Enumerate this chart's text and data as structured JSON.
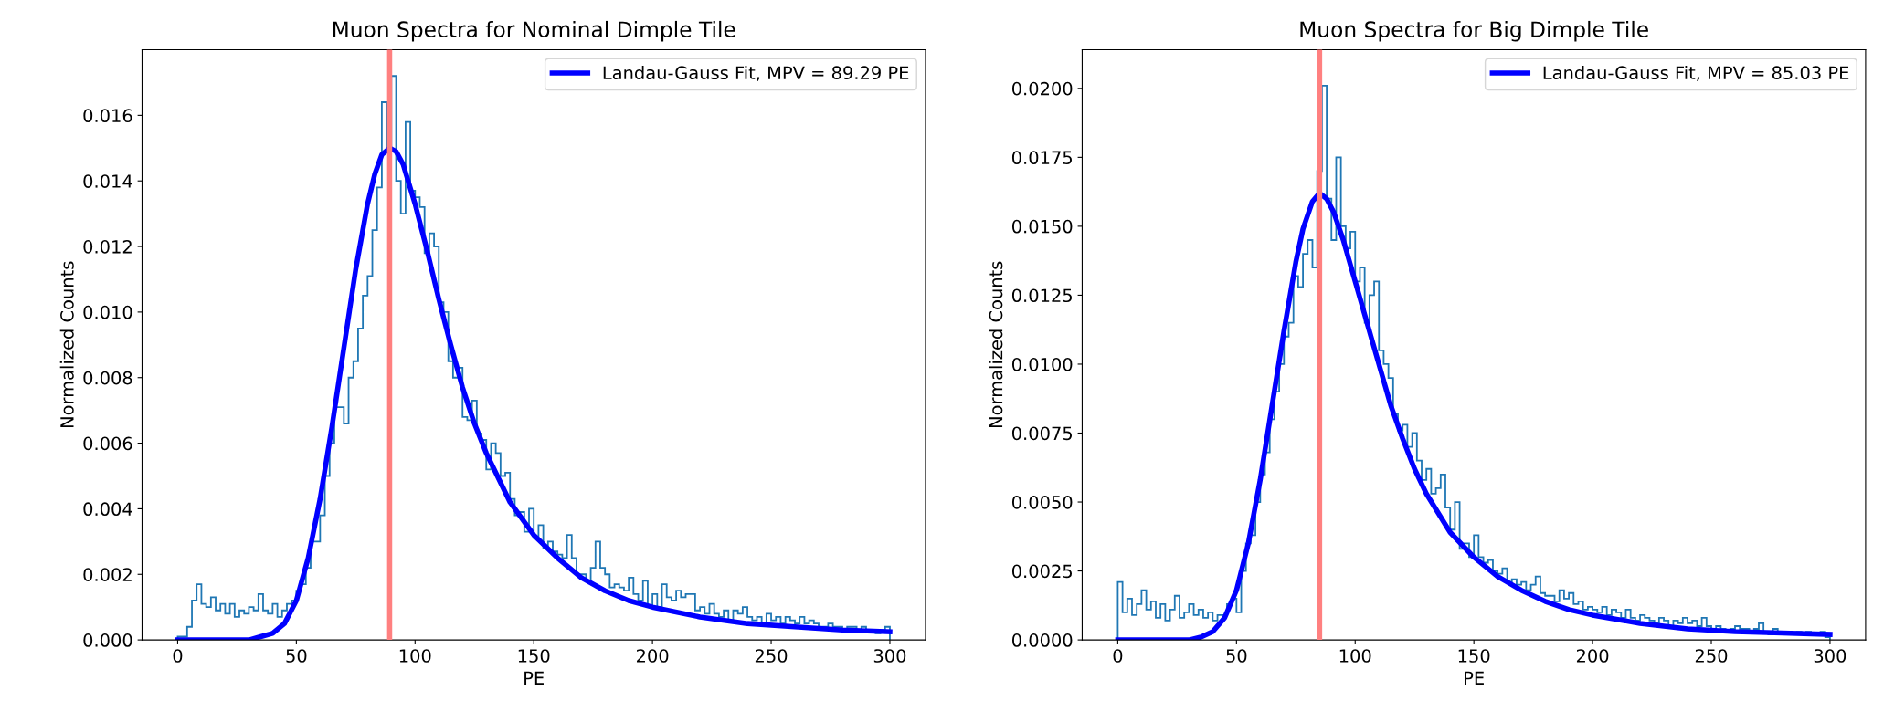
{
  "chart_data": [
    {
      "type": "histogram",
      "title": "Muon Spectra for Nominal Dimple Tile",
      "xlabel": "PE",
      "ylabel": "Normalized Counts",
      "xlim": [
        -15,
        315
      ],
      "xticks": [
        0,
        50,
        100,
        150,
        200,
        250,
        300
      ],
      "ylim": [
        0,
        0.018
      ],
      "yticks": [
        {
          "value": 0,
          "label": "0.000"
        },
        {
          "value": 0.002,
          "label": "0.002"
        },
        {
          "value": 0.004,
          "label": "0.004"
        },
        {
          "value": 0.006,
          "label": "0.006"
        },
        {
          "value": 0.008,
          "label": "0.008"
        },
        {
          "value": 0.01,
          "label": "0.010"
        },
        {
          "value": 0.012,
          "label": "0.012"
        },
        {
          "value": 0.014,
          "label": "0.014"
        },
        {
          "value": 0.016,
          "label": "0.016"
        }
      ],
      "grid": false,
      "legend": "top right",
      "ref_lines": [
        {
          "axis": "x",
          "value": 89.29,
          "color": "#ff8080"
        }
      ],
      "series": [
        {
          "color": "#1f77b4",
          "bins": [
            0,
            2,
            4,
            6,
            8,
            10,
            12,
            14,
            16,
            18,
            20,
            22,
            24,
            26,
            28,
            30,
            32,
            34,
            36,
            38,
            40,
            42,
            44,
            46,
            48,
            50,
            52,
            54,
            56,
            58,
            60,
            62,
            64,
            66,
            68,
            70,
            72,
            74,
            76,
            78,
            80,
            82,
            84,
            86,
            88,
            90,
            92,
            94,
            96,
            98,
            100,
            102,
            104,
            106,
            108,
            110,
            112,
            114,
            116,
            118,
            120,
            122,
            124,
            126,
            128,
            130,
            132,
            134,
            136,
            138,
            140,
            142,
            144,
            146,
            148,
            150,
            152,
            154,
            156,
            158,
            160,
            162,
            164,
            166,
            168,
            170,
            172,
            174,
            176,
            178,
            180,
            182,
            184,
            186,
            188,
            190,
            192,
            194,
            196,
            198,
            200,
            202,
            204,
            206,
            208,
            210,
            212,
            214,
            216,
            218,
            220,
            222,
            224,
            226,
            228,
            230,
            232,
            234,
            236,
            238,
            240,
            242,
            244,
            246,
            248,
            250,
            252,
            254,
            256,
            258,
            260,
            262,
            264,
            266,
            268,
            270,
            272,
            274,
            276,
            278,
            280,
            282,
            284,
            286,
            288,
            290,
            292,
            294,
            296,
            298,
            300
          ],
          "values": [
            0.0001,
            0.0001,
            0.0004,
            0.0012,
            0.0017,
            0.0011,
            0.001,
            0.0013,
            0.0009,
            0.0011,
            0.0008,
            0.0011,
            0.0007,
            0.0009,
            0.0008,
            0.001,
            0.0009,
            0.0014,
            0.0009,
            0.0008,
            0.0011,
            0.0007,
            0.0009,
            0.0011,
            0.0012,
            0.0015,
            0.0017,
            0.0022,
            0.003,
            0.003,
            0.0038,
            0.005,
            0.006,
            0.0071,
            0.0071,
            0.0066,
            0.008,
            0.0085,
            0.0095,
            0.0105,
            0.0111,
            0.0125,
            0.0138,
            0.0164,
            0.015,
            0.0172,
            0.014,
            0.013,
            0.0158,
            0.0137,
            0.0135,
            0.0132,
            0.0118,
            0.0124,
            0.012,
            0.0103,
            0.01,
            0.0085,
            0.008,
            0.0083,
            0.0068,
            0.0067,
            0.0073,
            0.0063,
            0.0061,
            0.0052,
            0.006,
            0.0057,
            0.005,
            0.0051,
            0.0043,
            0.0038,
            0.0039,
            0.0033,
            0.004,
            0.0031,
            0.0035,
            0.0028,
            0.003,
            0.0027,
            0.0026,
            0.0025,
            0.0032,
            0.0025,
            0.002,
            0.002,
            0.0018,
            0.0022,
            0.003,
            0.0022,
            0.002,
            0.0016,
            0.0017,
            0.0016,
            0.0015,
            0.0019,
            0.0014,
            0.0012,
            0.0018,
            0.001,
            0.0014,
            0.001,
            0.0017,
            0.0013,
            0.0012,
            0.0015,
            0.0013,
            0.0014,
            0.0014,
            0.0009,
            0.001,
            0.0008,
            0.0011,
            0.0008,
            0.0007,
            0.0009,
            0.0006,
            0.0009,
            0.0008,
            0.001,
            0.0007,
            0.0006,
            0.0007,
            0.0005,
            0.0008,
            0.0006,
            0.0007,
            0.0005,
            0.0007,
            0.0006,
            0.0005,
            0.0007,
            0.0005,
            0.0006,
            0.0005,
            0.0004,
            0.0004,
            0.0005,
            0.0004,
            0.0004,
            0.0003,
            0.0004,
            0.0004,
            0.0003,
            0.0004,
            0.0003,
            0.0003,
            0.0002,
            0.0003,
            0.0004
          ]
        },
        {
          "type": "line",
          "name": "Landau-Gauss Fit, MPV = 89.29 PE",
          "color": "#0000ff",
          "x": [
            0,
            30,
            35,
            40,
            45,
            50,
            55,
            60,
            65,
            70,
            75,
            80,
            83,
            86,
            89.3,
            92,
            95,
            100,
            105,
            110,
            115,
            120,
            125,
            130,
            140,
            150,
            160,
            170,
            180,
            190,
            200,
            220,
            240,
            260,
            280,
            300
          ],
          "values": [
            0,
            0,
            0.0001,
            0.0002,
            0.0005,
            0.0012,
            0.0025,
            0.0043,
            0.0065,
            0.0089,
            0.0113,
            0.0133,
            0.0142,
            0.0148,
            0.015,
            0.0149,
            0.0145,
            0.0133,
            0.0119,
            0.0104,
            0.009,
            0.0077,
            0.0066,
            0.0057,
            0.0042,
            0.0032,
            0.0025,
            0.0019,
            0.0015,
            0.0012,
            0.001,
            0.0007,
            0.0005,
            0.0004,
            0.0003,
            0.00025
          ]
        }
      ]
    },
    {
      "type": "histogram",
      "title": "Muon Spectra for Big Dimple Tile",
      "xlabel": "PE",
      "ylabel": "Normalized Counts",
      "xlim": [
        -15,
        315
      ],
      "xticks": [
        0,
        50,
        100,
        150,
        200,
        250,
        300
      ],
      "ylim": [
        0,
        0.0214
      ],
      "yticks": [
        {
          "value": 0,
          "label": "0.0000"
        },
        {
          "value": 0.0025,
          "label": "0.0025"
        },
        {
          "value": 0.005,
          "label": "0.0050"
        },
        {
          "value": 0.0075,
          "label": "0.0075"
        },
        {
          "value": 0.01,
          "label": "0.0100"
        },
        {
          "value": 0.0125,
          "label": "0.0125"
        },
        {
          "value": 0.015,
          "label": "0.0150"
        },
        {
          "value": 0.0175,
          "label": "0.0175"
        },
        {
          "value": 0.02,
          "label": "0.0200"
        }
      ],
      "grid": false,
      "legend": "top right",
      "ref_lines": [
        {
          "axis": "x",
          "value": 85.03,
          "color": "#ff8080"
        }
      ],
      "series": [
        {
          "color": "#1f77b4",
          "bins": [
            0,
            2,
            4,
            6,
            8,
            10,
            12,
            14,
            16,
            18,
            20,
            22,
            24,
            26,
            28,
            30,
            32,
            34,
            36,
            38,
            40,
            42,
            44,
            46,
            48,
            50,
            52,
            54,
            56,
            58,
            60,
            62,
            64,
            66,
            68,
            70,
            72,
            74,
            76,
            78,
            80,
            82,
            84,
            86,
            88,
            90,
            92,
            94,
            96,
            98,
            100,
            102,
            104,
            106,
            108,
            110,
            112,
            114,
            116,
            118,
            120,
            122,
            124,
            126,
            128,
            130,
            132,
            134,
            136,
            138,
            140,
            142,
            144,
            146,
            148,
            150,
            152,
            154,
            156,
            158,
            160,
            162,
            164,
            166,
            168,
            170,
            172,
            174,
            176,
            178,
            180,
            182,
            184,
            186,
            188,
            190,
            192,
            194,
            196,
            198,
            200,
            202,
            204,
            206,
            208,
            210,
            212,
            214,
            216,
            218,
            220,
            222,
            224,
            226,
            228,
            230,
            232,
            234,
            236,
            238,
            240,
            242,
            244,
            246,
            248,
            250,
            252,
            254,
            256,
            258,
            260,
            262,
            264,
            266,
            268,
            270,
            272,
            274,
            276,
            278,
            280,
            282,
            284,
            286,
            288,
            290,
            292,
            294,
            296,
            298,
            300
          ],
          "values": [
            0.0021,
            0.001,
            0.0015,
            0.0009,
            0.0013,
            0.0018,
            0.0011,
            0.0014,
            0.0008,
            0.0013,
            0.0007,
            0.0011,
            0.0016,
            0.0008,
            0.001,
            0.0013,
            0.0009,
            0.0011,
            0.0008,
            0.001,
            0.0007,
            0.0009,
            0.0009,
            0.0013,
            0.0015,
            0.001,
            0.0025,
            0.0035,
            0.0038,
            0.005,
            0.006,
            0.0068,
            0.008,
            0.009,
            0.01,
            0.011,
            0.0115,
            0.0132,
            0.0128,
            0.014,
            0.0145,
            0.0135,
            0.017,
            0.0201,
            0.016,
            0.0145,
            0.0175,
            0.015,
            0.0142,
            0.0148,
            0.013,
            0.0135,
            0.0115,
            0.0125,
            0.013,
            0.0105,
            0.01,
            0.0095,
            0.0082,
            0.0076,
            0.0078,
            0.007,
            0.0075,
            0.0065,
            0.0058,
            0.0062,
            0.0053,
            0.0055,
            0.006,
            0.0048,
            0.004,
            0.005,
            0.0033,
            0.0035,
            0.003,
            0.0038,
            0.003,
            0.0028,
            0.0029,
            0.0025,
            0.0024,
            0.0026,
            0.0021,
            0.0022,
            0.002,
            0.0021,
            0.0018,
            0.002,
            0.0023,
            0.0017,
            0.0016,
            0.0016,
            0.0014,
            0.0018,
            0.0015,
            0.0017,
            0.0013,
            0.0014,
            0.0011,
            0.0012,
            0.0011,
            0.001,
            0.0012,
            0.0009,
            0.0011,
            0.001,
            0.0008,
            0.0011,
            0.0008,
            0.0007,
            0.0009,
            0.0008,
            0.0007,
            0.0006,
            0.0008,
            0.0007,
            0.0005,
            0.0007,
            0.0006,
            0.0008,
            0.0006,
            0.0007,
            0.0005,
            0.0008,
            0.0005,
            0.0004,
            0.0005,
            0.0004,
            0.0003,
            0.0004,
            0.0005,
            0.0004,
            0.0004,
            0.0003,
            0.0004,
            0.0006,
            0.0003,
            0.0002,
            0.0004,
            0.0003,
            0.0003,
            0.0003,
            0.0002,
            0.0003,
            0.0002,
            0.0003,
            0.0002,
            0.0002,
            0.0003,
            0.0001
          ]
        },
        {
          "type": "line",
          "name": "Landau-Gauss Fit, MPV = 85.03 PE",
          "color": "#0000ff",
          "x": [
            0,
            30,
            35,
            40,
            45,
            50,
            55,
            60,
            65,
            70,
            75,
            78,
            82,
            85,
            88,
            91,
            95,
            100,
            105,
            110,
            115,
            120,
            125,
            130,
            140,
            150,
            160,
            170,
            180,
            190,
            200,
            220,
            240,
            260,
            280,
            300
          ],
          "values": [
            0,
            0,
            0.0001,
            0.0003,
            0.0008,
            0.0018,
            0.0035,
            0.0058,
            0.0085,
            0.0112,
            0.0137,
            0.0149,
            0.0159,
            0.0162,
            0.016,
            0.0155,
            0.0145,
            0.013,
            0.0115,
            0.01,
            0.0085,
            0.0073,
            0.0062,
            0.0053,
            0.0039,
            0.003,
            0.0023,
            0.0018,
            0.0014,
            0.0011,
            0.0009,
            0.0006,
            0.0004,
            0.0003,
            0.00025,
            0.0002
          ]
        }
      ]
    }
  ]
}
